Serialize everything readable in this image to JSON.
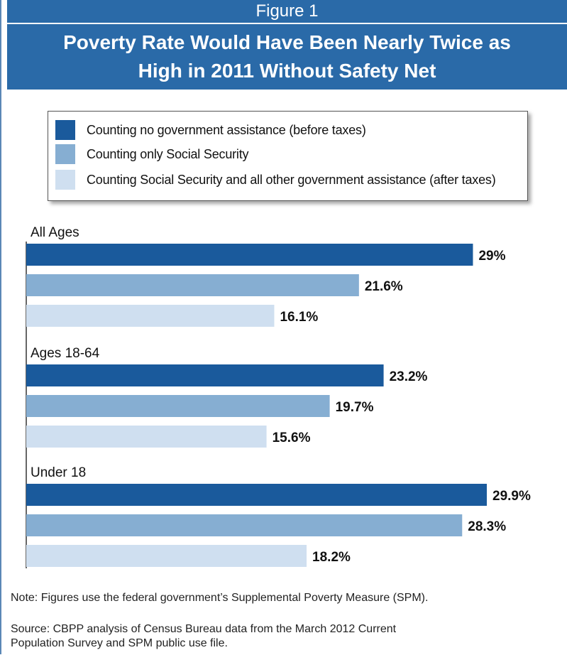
{
  "figure_label": "Figure 1",
  "title_lines": [
    "Poverty Rate Would Have Been Nearly Twice as",
    "High in 2011 Without Safety Net"
  ],
  "colors": {
    "header": "#2a6aa8",
    "series": [
      "#1a5a9c",
      "#86aed2",
      "#cfdff0"
    ]
  },
  "legend": [
    "Counting no government assistance (before taxes)",
    "Counting only Social Security",
    "Counting Social Security and all other government assistance (after taxes)"
  ],
  "chart_data": {
    "type": "bar",
    "orientation": "horizontal",
    "categories": [
      "All Ages",
      "Ages 18-64",
      "Under 18"
    ],
    "series": [
      {
        "name": "Counting no government assistance (before taxes)",
        "values": [
          29,
          23.2,
          29.9
        ]
      },
      {
        "name": "Counting only Social Security",
        "values": [
          21.6,
          19.7,
          28.3
        ]
      },
      {
        "name": "Counting Social Security and all other government assistance (after taxes)",
        "values": [
          16.1,
          15.6,
          18.2
        ]
      }
    ],
    "data_labels": [
      [
        "29%",
        "21.6%",
        "16.1%"
      ],
      [
        "23.2%",
        "19.7%",
        "15.6%"
      ],
      [
        "29.9%",
        "28.3%",
        "18.2%"
      ]
    ],
    "xlim": [
      0,
      29.9
    ],
    "grid": false,
    "legend_position": "top"
  },
  "note": "Note: Figures use the federal government’s Supplemental Poverty Measure (SPM).",
  "source_lines": [
    "Source: CBPP analysis of Census Bureau data from the March 2012 Current",
    "Population Survey and SPM public use file."
  ]
}
